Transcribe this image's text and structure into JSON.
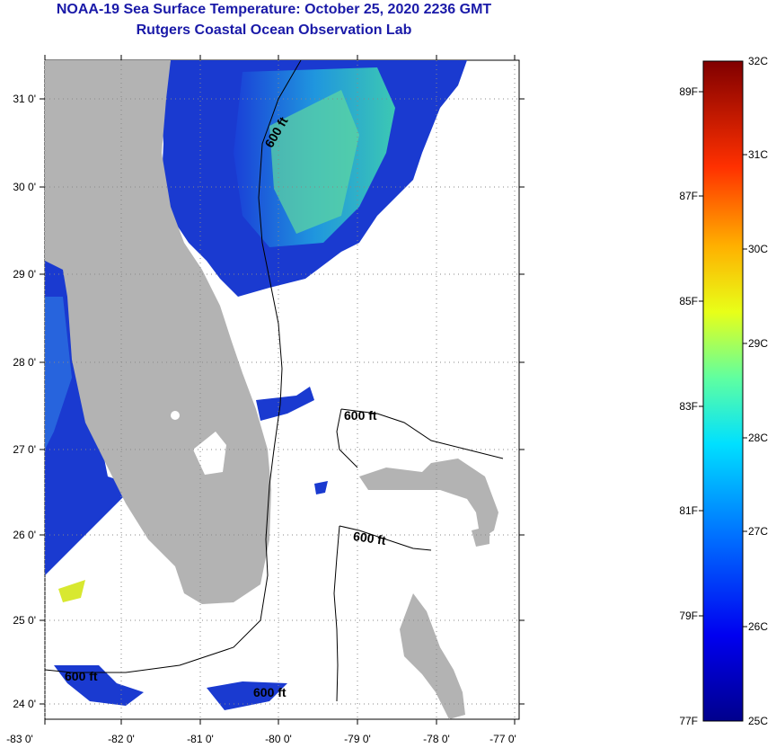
{
  "title": {
    "line1": "NOAA-19 Sea Surface Temperature:  October 25, 2020 2236 GMT",
    "line2": "Rutgers Coastal Ocean Observation Lab"
  },
  "axes": {
    "lat_labels": [
      "31 0'",
      "30 0'",
      "29 0'",
      "28 0'",
      "27 0'",
      "26 0'",
      "25 0'",
      "24 0'"
    ],
    "lon_labels": [
      "-83 0'",
      "-82 0'",
      "-81 0'",
      "-80 0'",
      "-79 0'",
      "-78 0'",
      "-77 0'"
    ]
  },
  "contour_labels": [
    "600 ft",
    "600 ft",
    "600 ft",
    "600 ft",
    "600 ft"
  ],
  "colorbar": {
    "celsius": [
      "32C",
      "31C",
      "30C",
      "29C",
      "28C",
      "27C",
      "26C",
      "25C"
    ],
    "fahrenheit": [
      "89F",
      "87F",
      "85F",
      "83F",
      "81F",
      "79F",
      "77F"
    ]
  },
  "colors": {
    "title": "#1a1aa8",
    "land": "#b3b3b3",
    "water_cold": "#1030c8",
    "water_warm": "#30c0c0"
  }
}
